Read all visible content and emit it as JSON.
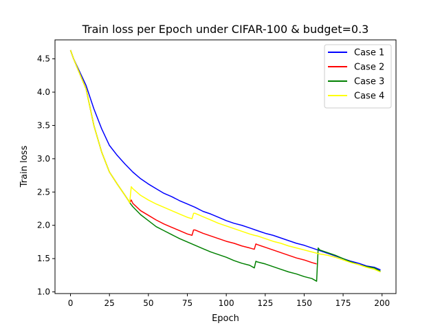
{
  "chart_data": {
    "type": "line",
    "title": "Train loss per Epoch under CIFAR-100 & budget=0.3",
    "xlabel": "Epoch",
    "ylabel": "Train loss",
    "xlim": [
      -9.95,
      208.95
    ],
    "ylim": [
      0.975,
      4.785
    ],
    "xticks": [
      0,
      25,
      50,
      75,
      100,
      125,
      150,
      175,
      200
    ],
    "xtick_labels": [
      "0",
      "25",
      "50",
      "75",
      "100",
      "125",
      "150",
      "175",
      "200"
    ],
    "yticks": [
      1.0,
      1.5,
      2.0,
      2.5,
      3.0,
      3.5,
      4.0,
      4.5
    ],
    "ytick_labels": [
      "1.0",
      "1.5",
      "2.0",
      "2.5",
      "3.0",
      "3.5",
      "4.0",
      "4.5"
    ],
    "grid": false,
    "legend": {
      "position": "top-right"
    },
    "series": [
      {
        "name": "Case 1",
        "color": "#0000ff",
        "points": [
          [
            0,
            4.63
          ],
          [
            2,
            4.5
          ],
          [
            5,
            4.35
          ],
          [
            10,
            4.1
          ],
          [
            15,
            3.75
          ],
          [
            20,
            3.45
          ],
          [
            25,
            3.2
          ],
          [
            30,
            3.05
          ],
          [
            35,
            2.92
          ],
          [
            40,
            2.8
          ],
          [
            45,
            2.7
          ],
          [
            50,
            2.62
          ],
          [
            55,
            2.55
          ],
          [
            60,
            2.48
          ],
          [
            65,
            2.43
          ],
          [
            70,
            2.37
          ],
          [
            75,
            2.32
          ],
          [
            80,
            2.27
          ],
          [
            85,
            2.21
          ],
          [
            90,
            2.17
          ],
          [
            95,
            2.12
          ],
          [
            100,
            2.07
          ],
          [
            105,
            2.03
          ],
          [
            110,
            2.0
          ],
          [
            115,
            1.96
          ],
          [
            120,
            1.92
          ],
          [
            125,
            1.88
          ],
          [
            130,
            1.85
          ],
          [
            135,
            1.81
          ],
          [
            140,
            1.77
          ],
          [
            145,
            1.73
          ],
          [
            150,
            1.7
          ],
          [
            155,
            1.66
          ],
          [
            160,
            1.62
          ],
          [
            165,
            1.58
          ],
          [
            170,
            1.54
          ],
          [
            175,
            1.5
          ],
          [
            180,
            1.46
          ],
          [
            185,
            1.43
          ],
          [
            190,
            1.39
          ],
          [
            195,
            1.37
          ],
          [
            199,
            1.33
          ]
        ]
      },
      {
        "name": "Case 2",
        "color": "#ff0000",
        "points": [
          [
            0,
            4.63
          ],
          [
            2,
            4.5
          ],
          [
            5,
            4.33
          ],
          [
            10,
            4.05
          ],
          [
            15,
            3.5
          ],
          [
            20,
            3.1
          ],
          [
            25,
            2.8
          ],
          [
            30,
            2.62
          ],
          [
            35,
            2.45
          ],
          [
            37,
            2.38
          ],
          [
            38,
            2.34
          ],
          [
            39,
            2.38
          ],
          [
            40,
            2.33
          ],
          [
            45,
            2.22
          ],
          [
            50,
            2.15
          ],
          [
            55,
            2.08
          ],
          [
            60,
            2.02
          ],
          [
            65,
            1.97
          ],
          [
            70,
            1.92
          ],
          [
            75,
            1.87
          ],
          [
            78,
            1.85
          ],
          [
            79,
            1.93
          ],
          [
            80,
            1.93
          ],
          [
            85,
            1.88
          ],
          [
            90,
            1.84
          ],
          [
            95,
            1.8
          ],
          [
            100,
            1.76
          ],
          [
            105,
            1.73
          ],
          [
            110,
            1.69
          ],
          [
            115,
            1.66
          ],
          [
            118,
            1.64
          ],
          [
            119,
            1.72
          ],
          [
            120,
            1.71
          ],
          [
            125,
            1.67
          ],
          [
            130,
            1.63
          ],
          [
            135,
            1.59
          ],
          [
            140,
            1.55
          ],
          [
            145,
            1.51
          ],
          [
            150,
            1.48
          ],
          [
            155,
            1.44
          ],
          [
            158,
            1.42
          ]
        ]
      },
      {
        "name": "Case 3",
        "color": "#008000",
        "points": [
          [
            0,
            4.63
          ],
          [
            2,
            4.5
          ],
          [
            5,
            4.33
          ],
          [
            10,
            4.05
          ],
          [
            15,
            3.5
          ],
          [
            20,
            3.1
          ],
          [
            25,
            2.8
          ],
          [
            30,
            2.62
          ],
          [
            35,
            2.45
          ],
          [
            37,
            2.38
          ],
          [
            38,
            2.34
          ],
          [
            40,
            2.28
          ],
          [
            45,
            2.16
          ],
          [
            50,
            2.07
          ],
          [
            55,
            1.98
          ],
          [
            60,
            1.92
          ],
          [
            65,
            1.86
          ],
          [
            70,
            1.8
          ],
          [
            75,
            1.75
          ],
          [
            80,
            1.7
          ],
          [
            85,
            1.65
          ],
          [
            90,
            1.6
          ],
          [
            95,
            1.56
          ],
          [
            100,
            1.52
          ],
          [
            105,
            1.47
          ],
          [
            110,
            1.43
          ],
          [
            115,
            1.4
          ],
          [
            118,
            1.36
          ],
          [
            119,
            1.46
          ],
          [
            120,
            1.45
          ],
          [
            125,
            1.42
          ],
          [
            130,
            1.38
          ],
          [
            135,
            1.34
          ],
          [
            140,
            1.3
          ],
          [
            145,
            1.27
          ],
          [
            150,
            1.23
          ],
          [
            155,
            1.2
          ],
          [
            158,
            1.16
          ],
          [
            159,
            1.66
          ],
          [
            160,
            1.63
          ],
          [
            165,
            1.59
          ],
          [
            170,
            1.55
          ],
          [
            175,
            1.5
          ],
          [
            180,
            1.45
          ],
          [
            185,
            1.41
          ],
          [
            190,
            1.38
          ],
          [
            195,
            1.36
          ],
          [
            199,
            1.31
          ]
        ]
      },
      {
        "name": "Case 4",
        "color": "#ffff00",
        "points": [
          [
            0,
            4.63
          ],
          [
            2,
            4.5
          ],
          [
            5,
            4.33
          ],
          [
            10,
            4.05
          ],
          [
            15,
            3.5
          ],
          [
            20,
            3.1
          ],
          [
            25,
            2.8
          ],
          [
            30,
            2.62
          ],
          [
            35,
            2.45
          ],
          [
            37,
            2.38
          ],
          [
            38,
            2.34
          ],
          [
            39,
            2.58
          ],
          [
            40,
            2.55
          ],
          [
            45,
            2.45
          ],
          [
            50,
            2.38
          ],
          [
            55,
            2.32
          ],
          [
            60,
            2.27
          ],
          [
            65,
            2.22
          ],
          [
            70,
            2.17
          ],
          [
            75,
            2.12
          ],
          [
            78,
            2.1
          ],
          [
            79,
            2.18
          ],
          [
            80,
            2.18
          ],
          [
            85,
            2.13
          ],
          [
            90,
            2.08
          ],
          [
            95,
            2.03
          ],
          [
            100,
            1.99
          ],
          [
            105,
            1.95
          ],
          [
            110,
            1.91
          ],
          [
            115,
            1.87
          ],
          [
            118,
            1.85
          ],
          [
            120,
            1.84
          ],
          [
            125,
            1.8
          ],
          [
            130,
            1.76
          ],
          [
            135,
            1.73
          ],
          [
            140,
            1.69
          ],
          [
            145,
            1.66
          ],
          [
            150,
            1.63
          ],
          [
            155,
            1.6
          ],
          [
            160,
            1.57
          ],
          [
            165,
            1.55
          ],
          [
            170,
            1.52
          ],
          [
            175,
            1.48
          ],
          [
            180,
            1.44
          ],
          [
            185,
            1.41
          ],
          [
            190,
            1.37
          ],
          [
            195,
            1.34
          ],
          [
            199,
            1.3
          ]
        ]
      }
    ]
  }
}
